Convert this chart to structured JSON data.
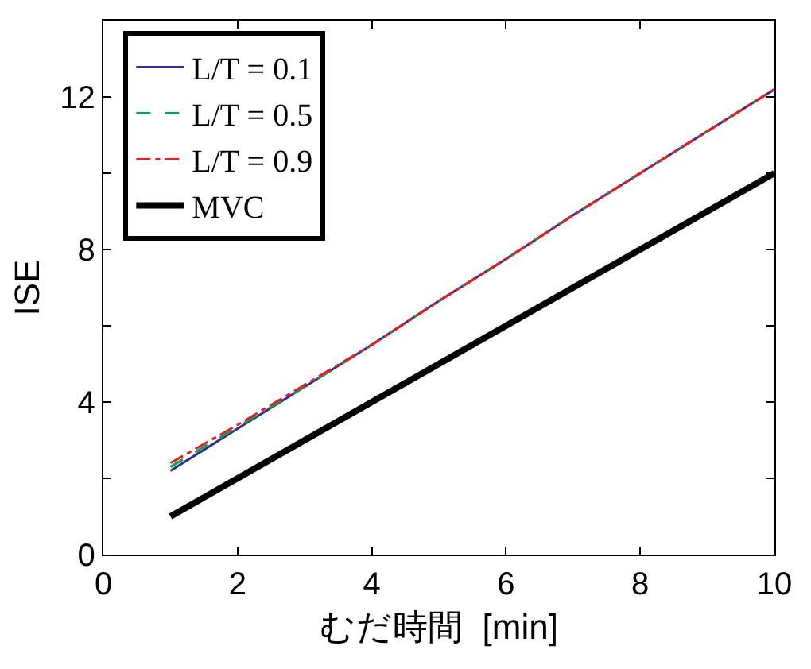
{
  "chart_data": {
    "type": "line",
    "xlabel": "むだ時間  [min]",
    "ylabel": "ISE",
    "x": [
      1,
      2,
      3,
      4,
      5,
      6,
      7,
      8,
      9,
      10
    ],
    "series": [
      {
        "name": "L/T = 0.1",
        "color": "#2e3192",
        "line_style": "solid",
        "values": [
          2.2,
          3.3,
          4.4,
          5.5,
          6.65,
          7.75,
          8.9,
          10.0,
          11.1,
          12.2
        ]
      },
      {
        "name": "L/T = 0.5",
        "color": "#00a651",
        "line_style": "dashed",
        "values": [
          2.3,
          3.35,
          4.4,
          5.5,
          6.65,
          7.75,
          8.9,
          10.0,
          11.1,
          12.2
        ]
      },
      {
        "name": "L/T = 0.9",
        "color": "#ed1c24",
        "line_style": "dashdot",
        "values": [
          2.4,
          3.4,
          4.45,
          5.5,
          6.65,
          7.75,
          8.9,
          10.0,
          11.1,
          12.2
        ]
      },
      {
        "name": "MVC",
        "color": "#000000",
        "line_style": "solid",
        "values": [
          1,
          2,
          3,
          4,
          5,
          6,
          7,
          8,
          9,
          10
        ]
      }
    ],
    "xlim": [
      0,
      10
    ],
    "xticks": [
      0,
      2,
      4,
      6,
      8,
      10
    ],
    "ylim": [
      0,
      14
    ],
    "yticks": [
      0,
      {
        "value": 2,
        "label": null
      },
      4,
      {
        "value": 6,
        "label": null
      },
      8,
      {
        "value": 10,
        "label": null
      },
      12
    ],
    "legend": "top left",
    "marker": "none"
  }
}
